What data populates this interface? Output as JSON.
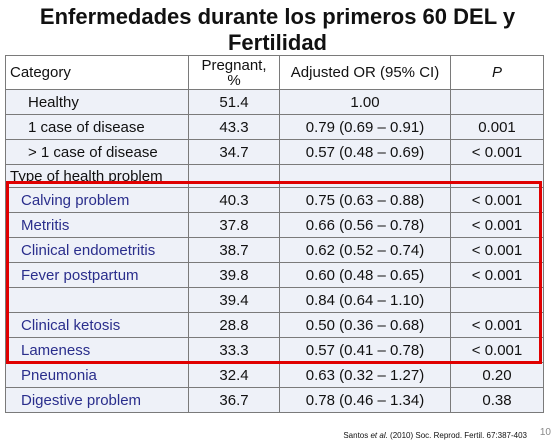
{
  "title": {
    "line1": "Enfermedades  durante los primeros 60 DEL y",
    "line2": "Fertilidad"
  },
  "table": {
    "headers": {
      "category": "Category",
      "pregnant_line1": "Pregnant,",
      "pregnant_line2": "%",
      "adjusted_or": "Adjusted OR (95% CI)",
      "p": "P"
    },
    "rows": [
      {
        "category": "Healthy",
        "pregnant": "51.4",
        "or": "1.00",
        "p": ""
      },
      {
        "category": "1 case of disease",
        "pregnant": "43.3",
        "or": "0.79 (0.69 – 0.91)",
        "p": "0.001"
      },
      {
        "category": "> 1 case of disease",
        "pregnant": "34.7",
        "or": "0.57 (0.48 – 0.69)",
        "p": "< 0.001"
      },
      {
        "category": "Type of health problem",
        "pregnant": "",
        "or": "",
        "p": ""
      },
      {
        "category": "Calving problem",
        "pregnant": "40.3",
        "or": "0.75 (0.63 – 0.88)",
        "p": "< 0.001"
      },
      {
        "category": "Metritis",
        "pregnant": "37.8",
        "or": "0.66 (0.56 – 0.78)",
        "p": "< 0.001"
      },
      {
        "category": "Clinical endometritis",
        "pregnant": "38.7",
        "or": "0.62 (0.52 – 0.74)",
        "p": "< 0.001"
      },
      {
        "category": "Fever postpartum",
        "pregnant": "39.8",
        "or": "0.60 (0.48 – 0.65)",
        "p": "< 0.001"
      },
      {
        "category": "",
        "pregnant": "39.4",
        "or": "0.84 (0.64 – 1.10)",
        "p": ""
      },
      {
        "category": "Clinical ketosis",
        "pregnant": "28.8",
        "or": "0.50 (0.36 – 0.68)",
        "p": "< 0.001"
      },
      {
        "category": "Lameness",
        "pregnant": "33.3",
        "or": "0.57 (0.41 – 0.78)",
        "p": "< 0.001"
      },
      {
        "category": "Pneumonia",
        "pregnant": "32.4",
        "or": "0.63 (0.32 – 1.27)",
        "p": "0.20"
      },
      {
        "category": "Digestive problem",
        "pregnant": "36.7",
        "or": "0.78 (0.46 – 1.34)",
        "p": "0.38"
      }
    ]
  },
  "citation": {
    "authors": "Santos ",
    "etal": "et al.",
    "rest": " (2010) Soc. Reprod. Fertil. 67:387-403"
  },
  "slide_number": "10",
  "colors": {
    "highlight_border": "#e00000",
    "subcategory_text": "#2a2e8c",
    "row_background": "#eef1f8"
  }
}
